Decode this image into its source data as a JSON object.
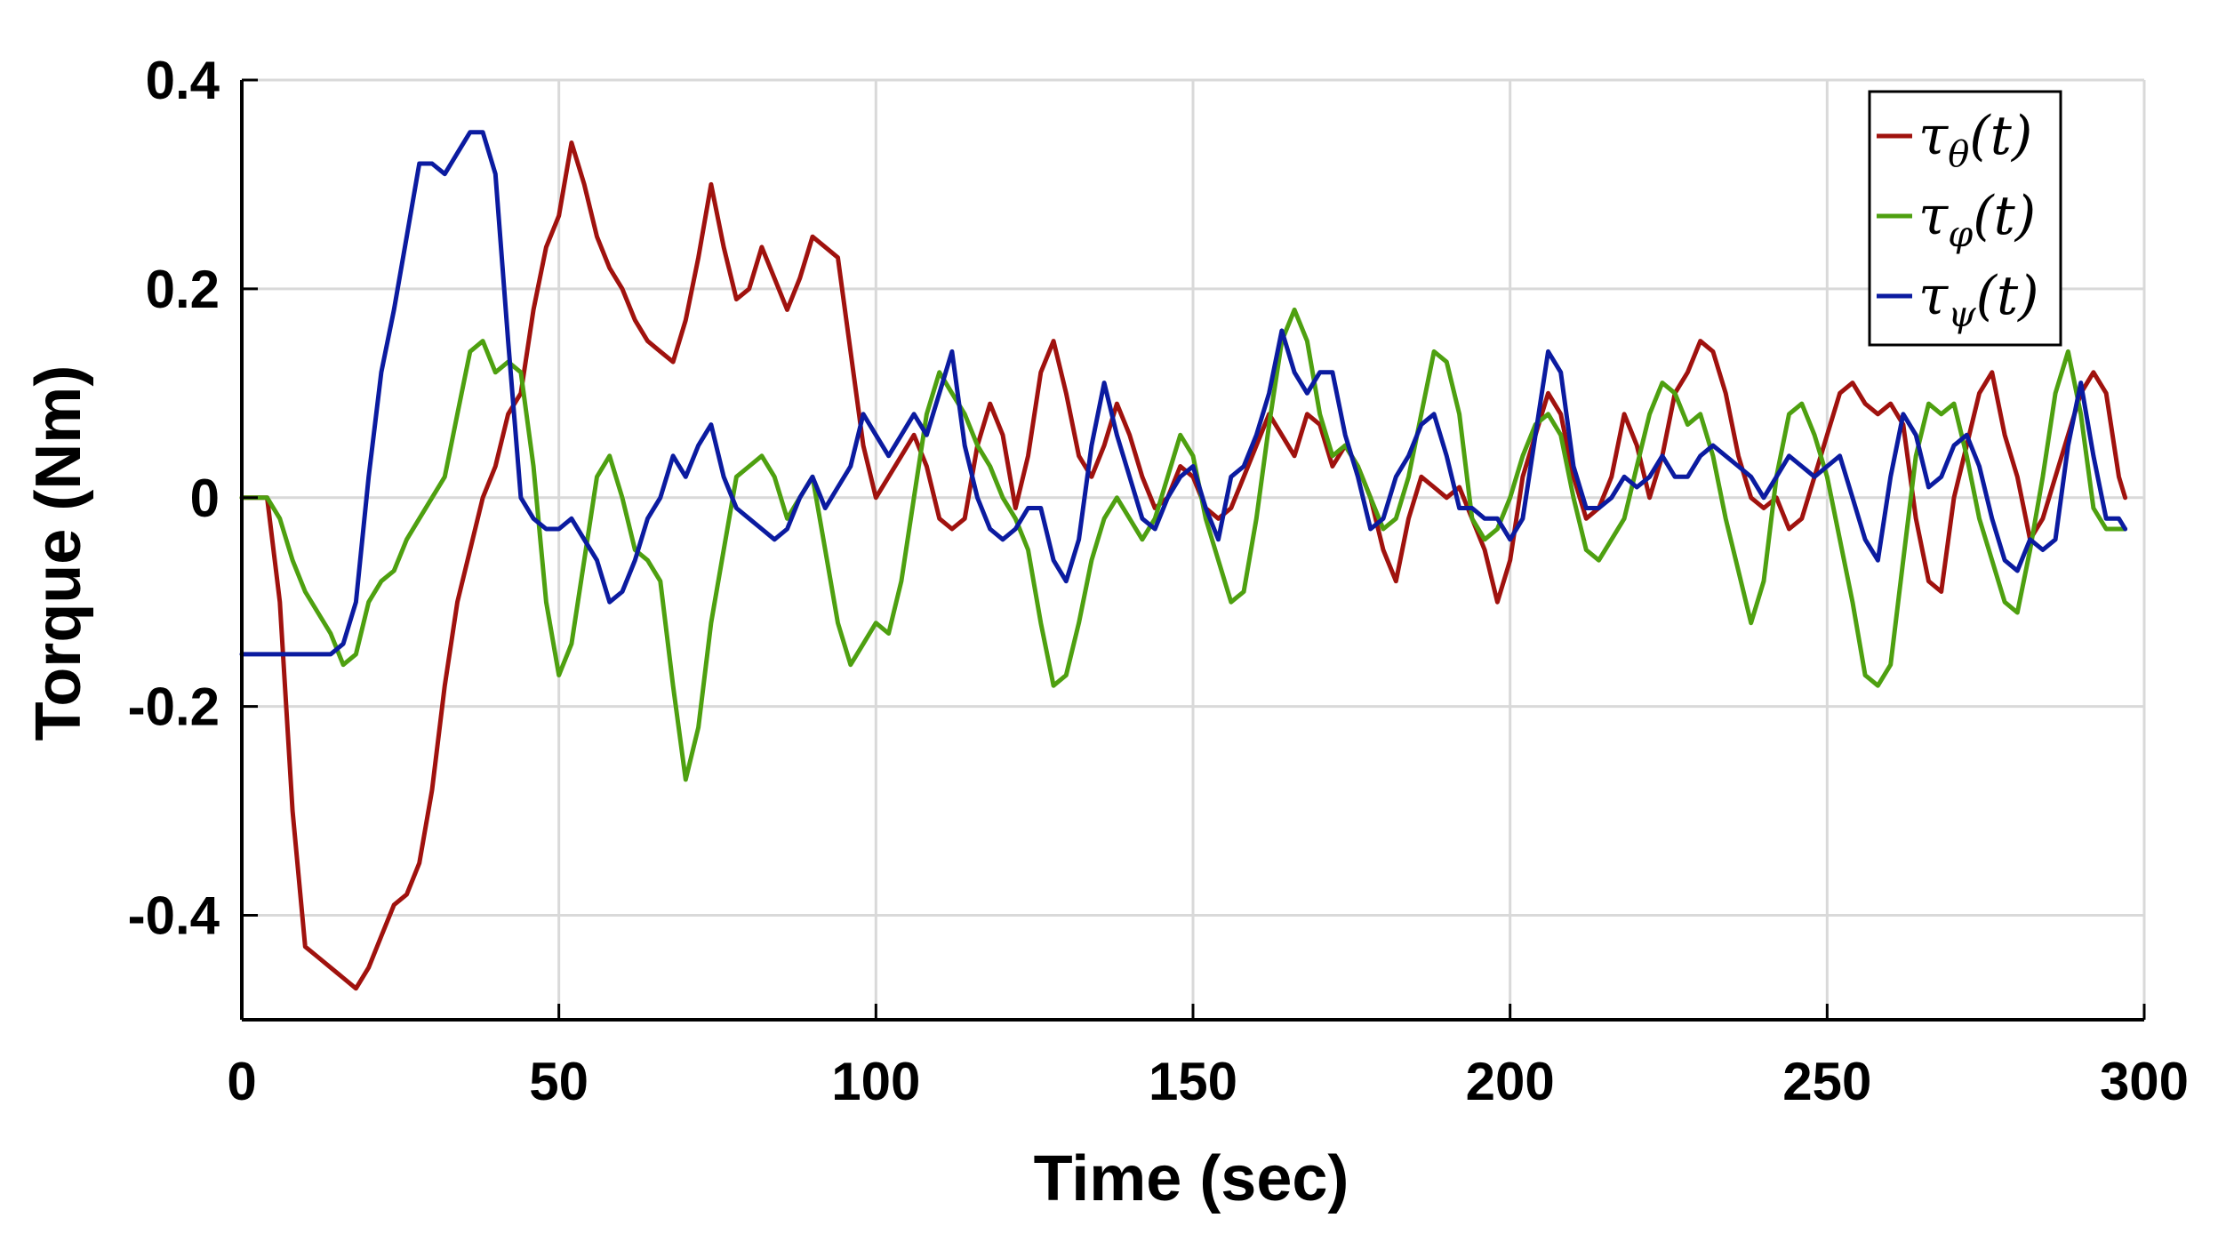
{
  "chart_data": {
    "type": "line",
    "xlabel": "Time (sec)",
    "ylabel": "Torque (Nm)",
    "xlim": [
      0,
      300
    ],
    "ylim": [
      -0.5,
      0.4
    ],
    "xticks": [
      "0",
      "50",
      "100",
      "150",
      "200",
      "250",
      "300"
    ],
    "xtick_values": [
      0,
      50,
      100,
      150,
      200,
      250,
      300
    ],
    "yticks": [
      "0.4",
      "0.2",
      "0",
      "-0.2",
      "-0.4"
    ],
    "ytick_values": [
      0.4,
      0.2,
      0,
      -0.2,
      -0.4
    ],
    "grid": true,
    "legend_position": "top-right",
    "series": [
      {
        "name": "τθ(t)",
        "symbol": "τ",
        "subscript": "θ",
        "argument": "(t)",
        "color": "#a0120e",
        "x": [
          0,
          4,
          6,
          8,
          10,
          12,
          14,
          16,
          18,
          20,
          22,
          24,
          26,
          28,
          30,
          32,
          34,
          36,
          38,
          40,
          42,
          44,
          46,
          48,
          50,
          52,
          54,
          56,
          58,
          60,
          62,
          64,
          66,
          68,
          70,
          72,
          74,
          76,
          78,
          80,
          82,
          84,
          86,
          88,
          90,
          92,
          94,
          96,
          98,
          100,
          102,
          104,
          106,
          108,
          110,
          112,
          114,
          116,
          118,
          120,
          122,
          124,
          126,
          128,
          130,
          132,
          134,
          136,
          138,
          140,
          142,
          144,
          146,
          148,
          150,
          152,
          154,
          156,
          158,
          160,
          162,
          164,
          166,
          168,
          170,
          172,
          174,
          176,
          178,
          180,
          182,
          184,
          186,
          188,
          190,
          192,
          194,
          196,
          198,
          200,
          202,
          204,
          206,
          208,
          210,
          212,
          214,
          216,
          218,
          220,
          222,
          224,
          226,
          228,
          230,
          232,
          234,
          236,
          238,
          240,
          242,
          244,
          246,
          248,
          250,
          252,
          254,
          256,
          258,
          260,
          262,
          264,
          266,
          268,
          270,
          272,
          274,
          276,
          278,
          280,
          282,
          284,
          286,
          288,
          290,
          292,
          294,
          296,
          297
        ],
        "y": [
          0,
          0,
          -0.1,
          -0.3,
          -0.43,
          -0.44,
          -0.45,
          -0.46,
          -0.47,
          -0.45,
          -0.42,
          -0.39,
          -0.38,
          -0.35,
          -0.28,
          -0.18,
          -0.1,
          -0.05,
          0,
          0.03,
          0.08,
          0.1,
          0.18,
          0.24,
          0.27,
          0.34,
          0.3,
          0.25,
          0.22,
          0.2,
          0.17,
          0.15,
          0.14,
          0.13,
          0.17,
          0.23,
          0.3,
          0.24,
          0.19,
          0.2,
          0.24,
          0.21,
          0.18,
          0.21,
          0.25,
          0.24,
          0.23,
          0.14,
          0.05,
          0,
          0.02,
          0.04,
          0.06,
          0.03,
          -0.02,
          -0.03,
          -0.02,
          0.05,
          0.09,
          0.06,
          -0.01,
          0.04,
          0.12,
          0.15,
          0.1,
          0.04,
          0.02,
          0.05,
          0.09,
          0.06,
          0.02,
          -0.01,
          0,
          0.03,
          0.02,
          -0.01,
          -0.02,
          -0.01,
          0.02,
          0.05,
          0.08,
          0.06,
          0.04,
          0.08,
          0.07,
          0.03,
          0.05,
          0.03,
          0,
          -0.05,
          -0.08,
          -0.02,
          0.02,
          0.01,
          0,
          0.01,
          -0.02,
          -0.05,
          -0.1,
          -0.06,
          0.02,
          0.06,
          0.1,
          0.08,
          0.02,
          -0.02,
          -0.01,
          0.02,
          0.08,
          0.05,
          0,
          0.04,
          0.1,
          0.12,
          0.15,
          0.14,
          0.1,
          0.04,
          0,
          -0.01,
          0,
          -0.03,
          -0.02,
          0.02,
          0.06,
          0.1,
          0.11,
          0.09,
          0.08,
          0.09,
          0.07,
          -0.02,
          -0.08,
          -0.09,
          0,
          0.05,
          0.1,
          0.12,
          0.06,
          0.02,
          -0.04,
          -0.02,
          0.02,
          0.06,
          0.1,
          0.12,
          0.1,
          0.02,
          0
        ]
      },
      {
        "name": "τφ(t)",
        "symbol": "τ",
        "subscript": "φ",
        "argument": "(t)",
        "color": "#4ea010",
        "x": [
          0,
          4,
          6,
          8,
          10,
          12,
          14,
          16,
          18,
          20,
          22,
          24,
          26,
          28,
          30,
          32,
          34,
          36,
          38,
          40,
          42,
          44,
          46,
          48,
          50,
          52,
          54,
          56,
          58,
          60,
          62,
          64,
          66,
          68,
          70,
          72,
          74,
          76,
          78,
          80,
          82,
          84,
          86,
          88,
          90,
          92,
          94,
          96,
          98,
          100,
          102,
          104,
          106,
          108,
          110,
          112,
          114,
          116,
          118,
          120,
          122,
          124,
          126,
          128,
          130,
          132,
          134,
          136,
          138,
          140,
          142,
          144,
          146,
          148,
          150,
          152,
          154,
          156,
          158,
          160,
          162,
          164,
          166,
          168,
          170,
          172,
          174,
          176,
          178,
          180,
          182,
          184,
          186,
          188,
          190,
          192,
          194,
          196,
          198,
          200,
          202,
          204,
          206,
          208,
          210,
          212,
          214,
          216,
          218,
          220,
          222,
          224,
          226,
          228,
          230,
          232,
          234,
          236,
          238,
          240,
          242,
          244,
          246,
          248,
          250,
          252,
          254,
          256,
          258,
          260,
          262,
          264,
          266,
          268,
          270,
          272,
          274,
          276,
          278,
          280,
          282,
          284,
          286,
          288,
          290,
          292,
          294,
          296,
          297
        ],
        "y": [
          0,
          0,
          -0.02,
          -0.06,
          -0.09,
          -0.11,
          -0.13,
          -0.16,
          -0.15,
          -0.1,
          -0.08,
          -0.07,
          -0.04,
          -0.02,
          0,
          0.02,
          0.08,
          0.14,
          0.15,
          0.12,
          0.13,
          0.12,
          0.03,
          -0.1,
          -0.17,
          -0.14,
          -0.06,
          0.02,
          0.04,
          0,
          -0.05,
          -0.06,
          -0.08,
          -0.18,
          -0.27,
          -0.22,
          -0.12,
          -0.05,
          0.02,
          0.03,
          0.04,
          0.02,
          -0.02,
          0,
          0.02,
          -0.05,
          -0.12,
          -0.16,
          -0.14,
          -0.12,
          -0.13,
          -0.08,
          0,
          0.08,
          0.12,
          0.1,
          0.08,
          0.05,
          0.03,
          0,
          -0.02,
          -0.05,
          -0.12,
          -0.18,
          -0.17,
          -0.12,
          -0.06,
          -0.02,
          0,
          -0.02,
          -0.04,
          -0.02,
          0.02,
          0.06,
          0.04,
          -0.02,
          -0.06,
          -0.1,
          -0.09,
          -0.02,
          0.07,
          0.15,
          0.18,
          0.15,
          0.08,
          0.04,
          0.05,
          0.03,
          0,
          -0.03,
          -0.02,
          0.02,
          0.08,
          0.14,
          0.13,
          0.08,
          -0.02,
          -0.04,
          -0.03,
          0,
          0.04,
          0.07,
          0.08,
          0.06,
          0,
          -0.05,
          -0.06,
          -0.04,
          -0.02,
          0.03,
          0.08,
          0.11,
          0.1,
          0.07,
          0.08,
          0.04,
          -0.02,
          -0.07,
          -0.12,
          -0.08,
          0.02,
          0.08,
          0.09,
          0.06,
          0.02,
          -0.04,
          -0.1,
          -0.17,
          -0.18,
          -0.16,
          -0.06,
          0.04,
          0.09,
          0.08,
          0.09,
          0.04,
          -0.02,
          -0.06,
          -0.1,
          -0.11,
          -0.05,
          0.02,
          0.1,
          0.14,
          0.08,
          -0.01,
          -0.03,
          -0.03,
          -0.03
        ]
      },
      {
        "name": "τψ(t)",
        "symbol": "τ",
        "subscript": "ψ",
        "argument": "(t)",
        "color": "#0b1ba0",
        "x": [
          0,
          4,
          6,
          8,
          10,
          12,
          14,
          16,
          18,
          20,
          22,
          24,
          26,
          28,
          30,
          32,
          34,
          36,
          38,
          40,
          42,
          44,
          46,
          48,
          50,
          52,
          54,
          56,
          58,
          60,
          62,
          64,
          66,
          68,
          70,
          72,
          74,
          76,
          78,
          80,
          82,
          84,
          86,
          88,
          90,
          92,
          94,
          96,
          98,
          100,
          102,
          104,
          106,
          108,
          110,
          112,
          114,
          116,
          118,
          120,
          122,
          124,
          126,
          128,
          130,
          132,
          134,
          136,
          138,
          140,
          142,
          144,
          146,
          148,
          150,
          152,
          154,
          156,
          158,
          160,
          162,
          164,
          166,
          168,
          170,
          172,
          174,
          176,
          178,
          180,
          182,
          184,
          186,
          188,
          190,
          192,
          194,
          196,
          198,
          200,
          202,
          204,
          206,
          208,
          210,
          212,
          214,
          216,
          218,
          220,
          222,
          224,
          226,
          228,
          230,
          232,
          234,
          236,
          238,
          240,
          242,
          244,
          246,
          248,
          250,
          252,
          254,
          256,
          258,
          260,
          262,
          264,
          266,
          268,
          270,
          272,
          274,
          276,
          278,
          280,
          282,
          284,
          286,
          288,
          290,
          292,
          294,
          296,
          297
        ],
        "y": [
          -0.15,
          -0.15,
          -0.15,
          -0.15,
          -0.15,
          -0.15,
          -0.15,
          -0.14,
          -0.1,
          0.02,
          0.12,
          0.18,
          0.25,
          0.32,
          0.32,
          0.31,
          0.33,
          0.35,
          0.35,
          0.31,
          0.15,
          0,
          -0.02,
          -0.03,
          -0.03,
          -0.02,
          -0.04,
          -0.06,
          -0.1,
          -0.09,
          -0.06,
          -0.02,
          0,
          0.04,
          0.02,
          0.05,
          0.07,
          0.02,
          -0.01,
          -0.02,
          -0.03,
          -0.04,
          -0.03,
          0,
          0.02,
          -0.01,
          0.01,
          0.03,
          0.08,
          0.06,
          0.04,
          0.06,
          0.08,
          0.06,
          0.1,
          0.14,
          0.05,
          0,
          -0.03,
          -0.04,
          -0.03,
          -0.01,
          -0.01,
          -0.06,
          -0.08,
          -0.04,
          0.05,
          0.11,
          0.06,
          0.02,
          -0.02,
          -0.03,
          0,
          0.02,
          0.03,
          -0.01,
          -0.04,
          0.02,
          0.03,
          0.06,
          0.1,
          0.16,
          0.12,
          0.1,
          0.12,
          0.12,
          0.06,
          0.02,
          -0.03,
          -0.02,
          0.02,
          0.04,
          0.07,
          0.08,
          0.04,
          -0.01,
          -0.01,
          -0.02,
          -0.02,
          -0.04,
          -0.02,
          0.06,
          0.14,
          0.12,
          0.03,
          -0.01,
          -0.01,
          0,
          0.02,
          0.01,
          0.02,
          0.04,
          0.02,
          0.02,
          0.04,
          0.05,
          0.04,
          0.03,
          0.02,
          0,
          0.02,
          0.04,
          0.03,
          0.02,
          0.03,
          0.04,
          0,
          -0.04,
          -0.06,
          0.02,
          0.08,
          0.06,
          0.01,
          0.02,
          0.05,
          0.06,
          0.03,
          -0.02,
          -0.06,
          -0.07,
          -0.04,
          -0.05,
          -0.04,
          0.05,
          0.11,
          0.04,
          -0.02,
          -0.02,
          -0.03
        ]
      }
    ]
  }
}
